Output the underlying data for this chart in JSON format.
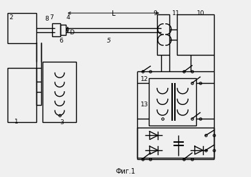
{
  "bg_color": "#f0f0f0",
  "line_color": "#000000",
  "lw": 1.0,
  "fig_caption": "Фиг.1"
}
